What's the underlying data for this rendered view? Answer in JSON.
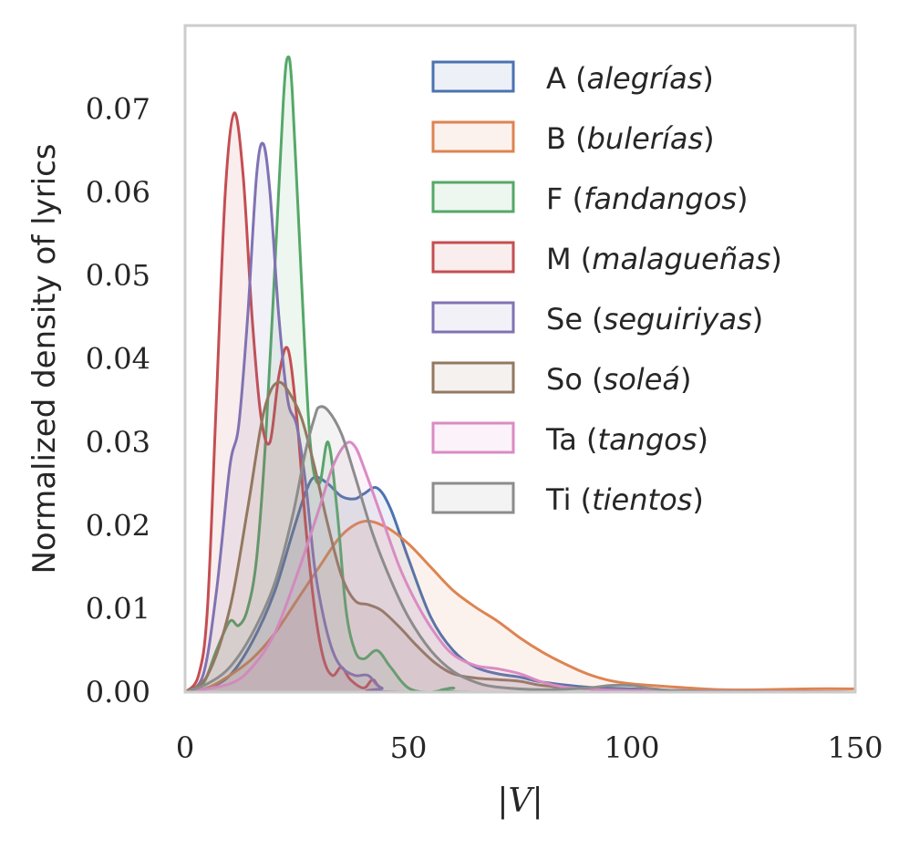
{
  "chart_data": {
    "type": "area",
    "title": "",
    "xlabel": "|V|",
    "ylabel": "Normalized density of lyrics",
    "xlim": [
      0,
      150
    ],
    "ylim": [
      0,
      0.08
    ],
    "xticks": [
      0,
      50,
      100,
      150
    ],
    "xtick_labels": [
      "0",
      "50",
      "100",
      "150"
    ],
    "yticks": [
      0.0,
      0.01,
      0.02,
      0.03,
      0.04,
      0.05,
      0.06,
      0.07
    ],
    "ytick_labels": [
      "0.00",
      "0.01",
      "0.02",
      "0.03",
      "0.04",
      "0.05",
      "0.06",
      "0.07"
    ],
    "grid": false,
    "legend_position": "top-right",
    "series": [
      {
        "name": "A (alegrías)",
        "code": "A",
        "style": "alegrías",
        "color": "#4c72b0",
        "points": [
          [
            0,
            0
          ],
          [
            5,
            0.0005
          ],
          [
            10,
            0.002
          ],
          [
            15,
            0.006
          ],
          [
            20,
            0.012
          ],
          [
            24,
            0.019
          ],
          [
            27,
            0.024
          ],
          [
            29,
            0.0258
          ],
          [
            32,
            0.025
          ],
          [
            35,
            0.0235
          ],
          [
            38,
            0.0232
          ],
          [
            40,
            0.0238
          ],
          [
            43,
            0.0245
          ],
          [
            46,
            0.022
          ],
          [
            50,
            0.016
          ],
          [
            55,
            0.009
          ],
          [
            60,
            0.005
          ],
          [
            65,
            0.003
          ],
          [
            70,
            0.0022
          ],
          [
            75,
            0.0018
          ],
          [
            80,
            0.0012
          ],
          [
            90,
            0.0006
          ],
          [
            100,
            0.0004
          ],
          [
            110,
            0.0002
          ],
          [
            150,
            0
          ]
        ]
      },
      {
        "name": "B (bulerías)",
        "code": "B",
        "style": "bulerías",
        "color": "#dd8452",
        "points": [
          [
            0,
            0
          ],
          [
            5,
            0.0005
          ],
          [
            10,
            0.002
          ],
          [
            15,
            0.004
          ],
          [
            20,
            0.007
          ],
          [
            25,
            0.011
          ],
          [
            30,
            0.015
          ],
          [
            35,
            0.0188
          ],
          [
            40,
            0.0205
          ],
          [
            45,
            0.0198
          ],
          [
            50,
            0.0178
          ],
          [
            55,
            0.015
          ],
          [
            60,
            0.0122
          ],
          [
            65,
            0.0102
          ],
          [
            70,
            0.0085
          ],
          [
            75,
            0.0065
          ],
          [
            80,
            0.0048
          ],
          [
            85,
            0.0034
          ],
          [
            90,
            0.0022
          ],
          [
            95,
            0.0014
          ],
          [
            100,
            0.001
          ],
          [
            110,
            0.0006
          ],
          [
            120,
            0.0003
          ],
          [
            130,
            0.0003
          ],
          [
            140,
            0.0004
          ],
          [
            150,
            0.0004
          ]
        ]
      },
      {
        "name": "F (fandangos)",
        "code": "F",
        "style": "fandangos",
        "color": "#55a868",
        "points": [
          [
            0,
            0
          ],
          [
            4,
            0.001
          ],
          [
            7,
            0.005
          ],
          [
            10,
            0.0085
          ],
          [
            12,
            0.008
          ],
          [
            14,
            0.01
          ],
          [
            16,
            0.016
          ],
          [
            18,
            0.03
          ],
          [
            20,
            0.05
          ],
          [
            22,
            0.071
          ],
          [
            23,
            0.0762
          ],
          [
            24,
            0.072
          ],
          [
            26,
            0.05
          ],
          [
            28,
            0.03
          ],
          [
            30,
            0.025
          ],
          [
            32,
            0.03
          ],
          [
            34,
            0.022
          ],
          [
            36,
            0.01
          ],
          [
            38,
            0.005
          ],
          [
            40,
            0.004
          ],
          [
            43,
            0.005
          ],
          [
            46,
            0.003
          ],
          [
            50,
            0.0005
          ],
          [
            55,
            0
          ],
          [
            60,
            0.0005
          ],
          [
            65,
            0
          ],
          [
            150,
            0
          ]
        ]
      },
      {
        "name": "M (malagueñas)",
        "code": "M",
        "style": "malagueñas",
        "color": "#c44e52",
        "points": [
          [
            0,
            0
          ],
          [
            3,
            0.002
          ],
          [
            5,
            0.01
          ],
          [
            7,
            0.035
          ],
          [
            9,
            0.06
          ],
          [
            11,
            0.0695
          ],
          [
            13,
            0.062
          ],
          [
            15,
            0.045
          ],
          [
            17,
            0.033
          ],
          [
            19,
            0.03
          ],
          [
            21,
            0.038
          ],
          [
            23,
            0.0412
          ],
          [
            25,
            0.033
          ],
          [
            27,
            0.02
          ],
          [
            29,
            0.01
          ],
          [
            31,
            0.004
          ],
          [
            33,
            0.002
          ],
          [
            35,
            0.003
          ],
          [
            37,
            0.0015
          ],
          [
            40,
            0.0005
          ],
          [
            42,
            0.0015
          ],
          [
            44,
            0.0005
          ],
          [
            50,
            0
          ],
          [
            150,
            0
          ]
        ]
      },
      {
        "name": "Se (seguiriyas)",
        "code": "Se",
        "style": "seguiriyas",
        "color": "#8172b3",
        "points": [
          [
            0,
            0
          ],
          [
            4,
            0.002
          ],
          [
            7,
            0.012
          ],
          [
            10,
            0.027
          ],
          [
            12,
            0.032
          ],
          [
            14,
            0.045
          ],
          [
            16,
            0.062
          ],
          [
            17.5,
            0.0658
          ],
          [
            19,
            0.06
          ],
          [
            21,
            0.045
          ],
          [
            23,
            0.035
          ],
          [
            25,
            0.032
          ],
          [
            27,
            0.025
          ],
          [
            29,
            0.015
          ],
          [
            31,
            0.009
          ],
          [
            33,
            0.005
          ],
          [
            35,
            0.003
          ],
          [
            38,
            0.002
          ],
          [
            41,
            0.002
          ],
          [
            44,
            0.0005
          ],
          [
            50,
            0
          ],
          [
            150,
            0
          ]
        ]
      },
      {
        "name": "So (soleá)",
        "code": "So",
        "style": "soleá",
        "color": "#937860",
        "points": [
          [
            0,
            0
          ],
          [
            5,
            0.002
          ],
          [
            10,
            0.01
          ],
          [
            14,
            0.022
          ],
          [
            17,
            0.032
          ],
          [
            19,
            0.036
          ],
          [
            21,
            0.0372
          ],
          [
            23,
            0.0362
          ],
          [
            26,
            0.033
          ],
          [
            29,
            0.027
          ],
          [
            32,
            0.02
          ],
          [
            35,
            0.014
          ],
          [
            38,
            0.011
          ],
          [
            41,
            0.0105
          ],
          [
            44,
            0.0098
          ],
          [
            48,
            0.0078
          ],
          [
            52,
            0.0055
          ],
          [
            56,
            0.0035
          ],
          [
            60,
            0.0022
          ],
          [
            65,
            0.0017
          ],
          [
            70,
            0.0015
          ],
          [
            75,
            0.0013
          ],
          [
            80,
            0.0008
          ],
          [
            90,
            0.0004
          ],
          [
            100,
            0.0002
          ],
          [
            150,
            0
          ]
        ]
      },
      {
        "name": "Ta (tangos)",
        "code": "Ta",
        "style": "tangos",
        "color": "#da8bc3",
        "points": [
          [
            0,
            0
          ],
          [
            10,
            0.001
          ],
          [
            15,
            0.003
          ],
          [
            20,
            0.007
          ],
          [
            25,
            0.014
          ],
          [
            30,
            0.022
          ],
          [
            33,
            0.027
          ],
          [
            36,
            0.0298
          ],
          [
            38,
            0.0295
          ],
          [
            40,
            0.027
          ],
          [
            44,
            0.021
          ],
          [
            48,
            0.015
          ],
          [
            52,
            0.0105
          ],
          [
            56,
            0.007
          ],
          [
            60,
            0.0045
          ],
          [
            65,
            0.0032
          ],
          [
            70,
            0.0028
          ],
          [
            75,
            0.0022
          ],
          [
            80,
            0.0012
          ],
          [
            85,
            0.0006
          ],
          [
            90,
            0.0004
          ],
          [
            100,
            0.0002
          ],
          [
            150,
            0
          ]
        ]
      },
      {
        "name": "Ti (tientos)",
        "code": "Ti",
        "style": "tientos",
        "color": "#8c8c8c",
        "points": [
          [
            0,
            0
          ],
          [
            5,
            0.001
          ],
          [
            10,
            0.003
          ],
          [
            15,
            0.007
          ],
          [
            20,
            0.013
          ],
          [
            24,
            0.021
          ],
          [
            27,
            0.029
          ],
          [
            29,
            0.033
          ],
          [
            30,
            0.0342
          ],
          [
            32,
            0.0338
          ],
          [
            35,
            0.031
          ],
          [
            38,
            0.026
          ],
          [
            42,
            0.019
          ],
          [
            46,
            0.0135
          ],
          [
            50,
            0.009
          ],
          [
            55,
            0.005
          ],
          [
            60,
            0.0025
          ],
          [
            65,
            0.0012
          ],
          [
            70,
            0.0006
          ],
          [
            80,
            0.0003
          ],
          [
            90,
            0.0005
          ],
          [
            95,
            0.0008
          ],
          [
            100,
            0.0008
          ],
          [
            105,
            0.0004
          ],
          [
            115,
            0.0001
          ],
          [
            150,
            0
          ]
        ]
      }
    ]
  }
}
